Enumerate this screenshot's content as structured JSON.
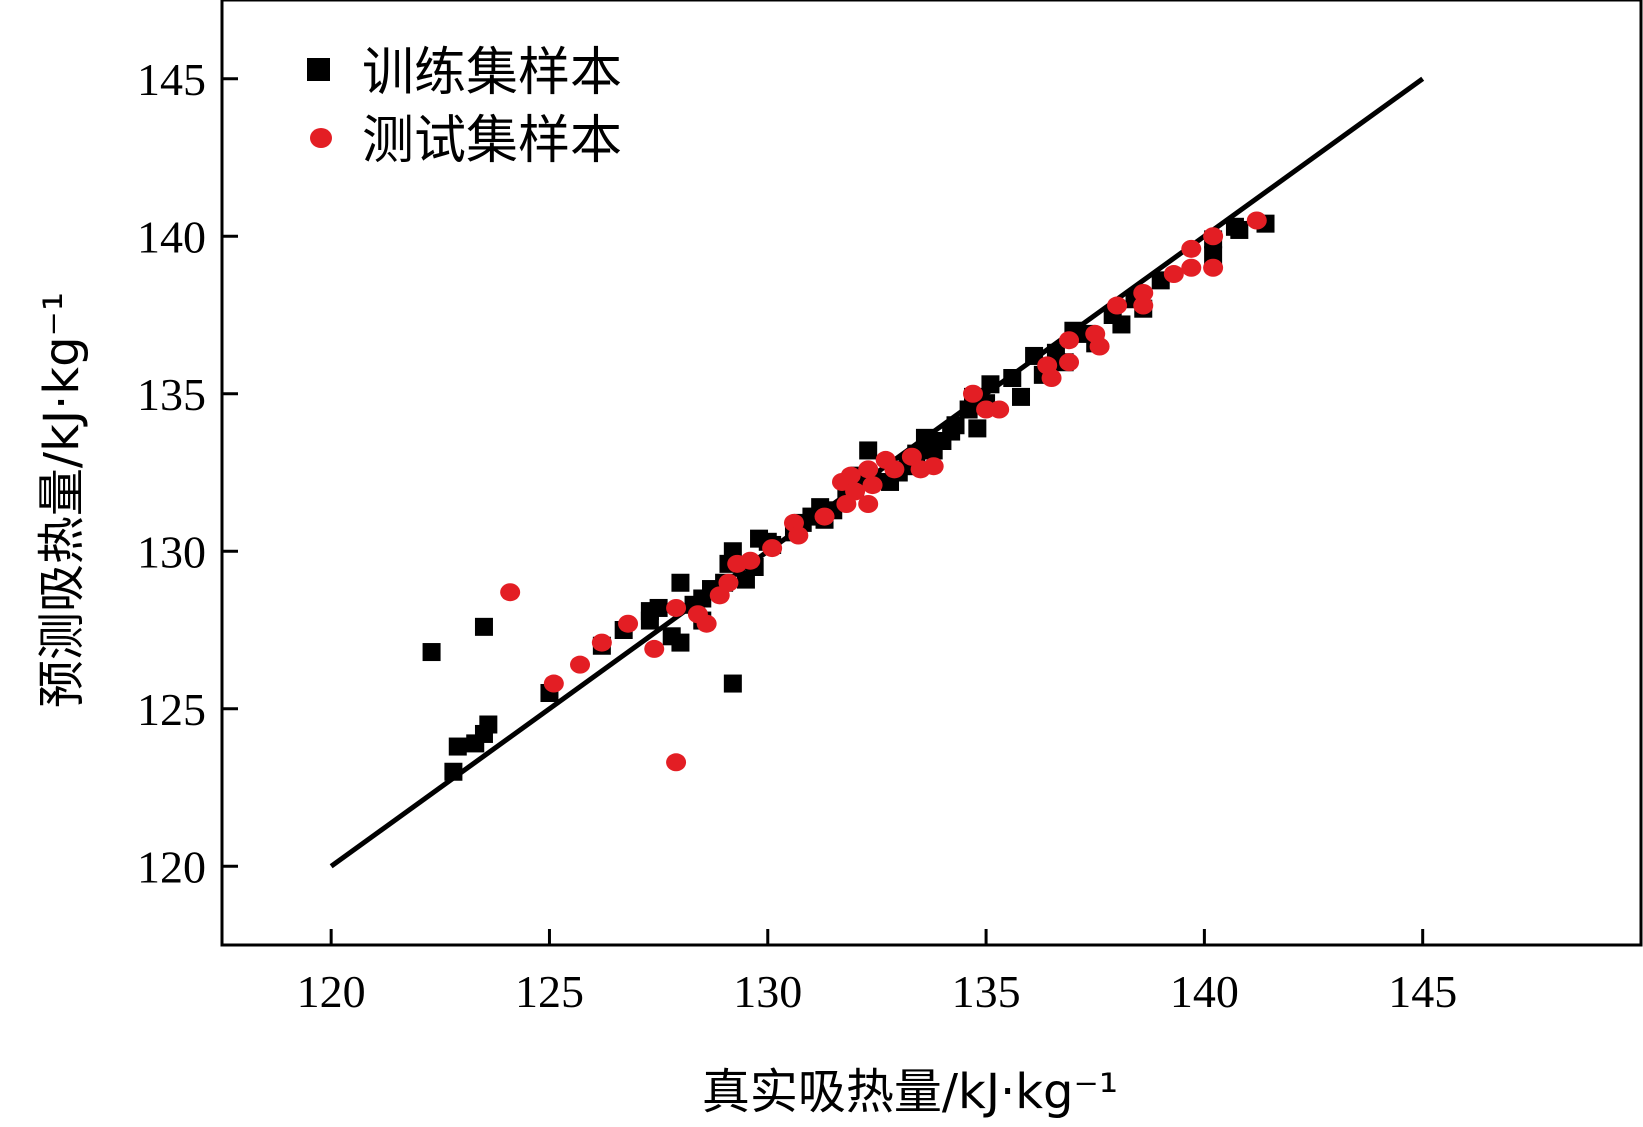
{
  "chart_data": {
    "type": "scatter",
    "title": "",
    "xlabel": "真实吸热量/kJ·kg⁻¹",
    "ylabel": "预测吸热量/kJ·kg⁻¹",
    "xlim": [
      117.5,
      150
    ],
    "ylim": [
      117.5,
      147.5
    ],
    "xticks": [
      120,
      125,
      130,
      135,
      140,
      145
    ],
    "yticks": [
      120,
      125,
      130,
      135,
      140,
      145
    ],
    "x_tick_labels": [
      "120",
      "125",
      "130",
      "135",
      "140",
      "145"
    ],
    "y_tick_labels": [
      "120",
      "125",
      "130",
      "135",
      "140",
      "145"
    ],
    "grid": false,
    "legend_position": "top-left",
    "reference_line": {
      "x": [
        120,
        145
      ],
      "y": [
        120,
        145
      ],
      "color": "#000000"
    },
    "series": [
      {
        "name": "训练集样本",
        "marker": "square",
        "color": "#000000",
        "points": [
          [
            122.3,
            126.8
          ],
          [
            122.8,
            123.0
          ],
          [
            122.9,
            123.8
          ],
          [
            123.3,
            123.9
          ],
          [
            123.5,
            124.2
          ],
          [
            123.5,
            127.6
          ],
          [
            123.6,
            124.5
          ],
          [
            125.0,
            125.5
          ],
          [
            126.2,
            127.0
          ],
          [
            126.7,
            127.5
          ],
          [
            127.3,
            127.8
          ],
          [
            127.3,
            128.1
          ],
          [
            127.5,
            128.2
          ],
          [
            127.8,
            127.3
          ],
          [
            128.0,
            127.1
          ],
          [
            128.0,
            129.0
          ],
          [
            128.3,
            128.3
          ],
          [
            128.5,
            128.5
          ],
          [
            128.5,
            127.8
          ],
          [
            128.7,
            128.8
          ],
          [
            129.0,
            129.0
          ],
          [
            129.1,
            129.6
          ],
          [
            129.2,
            125.8
          ],
          [
            129.2,
            130.0
          ],
          [
            129.5,
            129.1
          ],
          [
            129.7,
            129.5
          ],
          [
            129.8,
            130.4
          ],
          [
            130.0,
            130.3
          ],
          [
            130.1,
            130.2
          ],
          [
            130.6,
            130.6
          ],
          [
            130.8,
            130.9
          ],
          [
            131.0,
            131.1
          ],
          [
            131.2,
            131.4
          ],
          [
            131.3,
            131.0
          ],
          [
            131.5,
            131.3
          ],
          [
            131.8,
            131.8
          ],
          [
            132.0,
            132.0
          ],
          [
            132.1,
            132.4
          ],
          [
            132.3,
            133.2
          ],
          [
            132.4,
            132.3
          ],
          [
            132.8,
            132.2
          ],
          [
            133.0,
            132.5
          ],
          [
            133.2,
            132.7
          ],
          [
            133.4,
            133.1
          ],
          [
            133.6,
            133.6
          ],
          [
            133.8,
            133.2
          ],
          [
            134.0,
            133.5
          ],
          [
            134.2,
            133.8
          ],
          [
            134.3,
            134.0
          ],
          [
            134.6,
            134.5
          ],
          [
            134.7,
            134.9
          ],
          [
            134.8,
            133.9
          ],
          [
            135.0,
            134.7
          ],
          [
            135.1,
            135.3
          ],
          [
            135.6,
            135.5
          ],
          [
            135.8,
            134.9
          ],
          [
            136.1,
            136.2
          ],
          [
            136.3,
            135.6
          ],
          [
            136.6,
            136.3
          ],
          [
            136.8,
            136.0
          ],
          [
            137.0,
            137.0
          ],
          [
            137.3,
            136.9
          ],
          [
            137.5,
            136.6
          ],
          [
            137.9,
            137.5
          ],
          [
            138.1,
            137.2
          ],
          [
            138.4,
            138.0
          ],
          [
            138.6,
            137.7
          ],
          [
            139.0,
            138.6
          ],
          [
            140.2,
            139.4
          ],
          [
            140.2,
            139.9
          ],
          [
            140.7,
            140.3
          ],
          [
            140.8,
            140.2
          ],
          [
            141.4,
            140.4
          ]
        ]
      },
      {
        "name": "测试集样本",
        "marker": "circle",
        "color": "#e31e24",
        "points": [
          [
            124.1,
            128.7
          ],
          [
            125.1,
            125.8
          ],
          [
            125.7,
            126.4
          ],
          [
            126.2,
            127.1
          ],
          [
            126.8,
            127.7
          ],
          [
            127.4,
            126.9
          ],
          [
            127.9,
            128.2
          ],
          [
            127.9,
            123.3
          ],
          [
            128.4,
            128.0
          ],
          [
            128.6,
            127.7
          ],
          [
            128.9,
            128.6
          ],
          [
            129.1,
            129.0
          ],
          [
            129.3,
            129.6
          ],
          [
            129.6,
            129.7
          ],
          [
            130.1,
            130.1
          ],
          [
            130.6,
            130.9
          ],
          [
            130.7,
            130.5
          ],
          [
            131.3,
            131.1
          ],
          [
            131.7,
            132.2
          ],
          [
            131.8,
            131.5
          ],
          [
            131.9,
            132.4
          ],
          [
            132.0,
            131.9
          ],
          [
            132.3,
            132.6
          ],
          [
            132.3,
            131.5
          ],
          [
            132.4,
            132.1
          ],
          [
            132.7,
            132.9
          ],
          [
            132.9,
            132.6
          ],
          [
            133.3,
            133.0
          ],
          [
            133.5,
            132.6
          ],
          [
            133.8,
            132.7
          ],
          [
            134.7,
            135.0
          ],
          [
            135.0,
            134.5
          ],
          [
            135.3,
            134.5
          ],
          [
            136.4,
            135.9
          ],
          [
            136.5,
            135.5
          ],
          [
            136.9,
            136.7
          ],
          [
            136.9,
            136.0
          ],
          [
            137.5,
            136.9
          ],
          [
            137.6,
            136.5
          ],
          [
            138.0,
            137.8
          ],
          [
            138.6,
            138.2
          ],
          [
            138.6,
            137.8
          ],
          [
            139.3,
            138.8
          ],
          [
            139.7,
            139.0
          ],
          [
            139.7,
            139.6
          ],
          [
            140.2,
            140.0
          ],
          [
            140.2,
            139.0
          ],
          [
            141.2,
            140.5
          ]
        ]
      }
    ]
  }
}
